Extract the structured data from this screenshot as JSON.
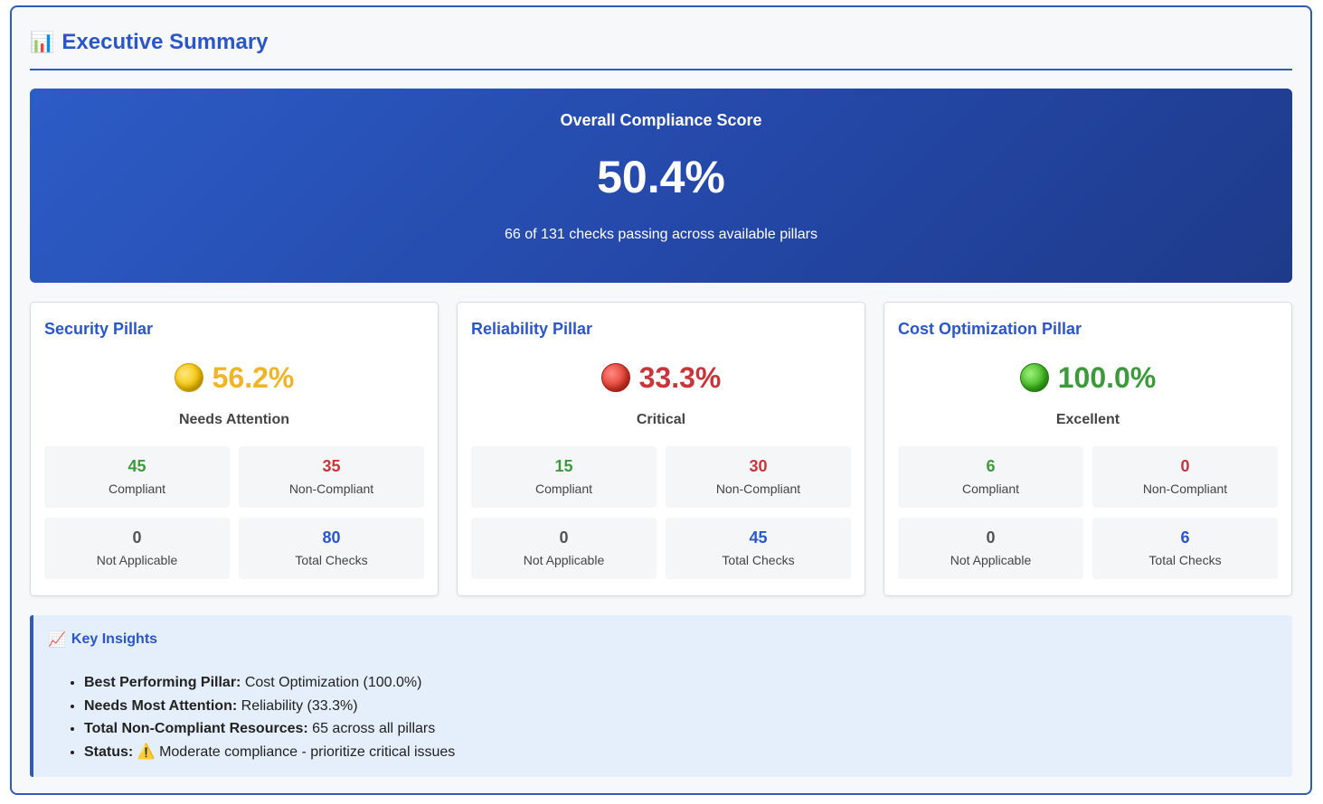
{
  "header": {
    "icon": "bar-chart-icon",
    "title": "Executive Summary"
  },
  "overall": {
    "label": "Overall Compliance Score",
    "value": "50.4%",
    "subtitle": "66 of 131 checks passing across available pillars"
  },
  "pillars": [
    {
      "title": "Security Pillar",
      "status_icon": "yellow-circle-icon",
      "percent": "56.2%",
      "status": "Needs Attention",
      "compliant": "45",
      "compliant_label": "Compliant",
      "non_compliant": "35",
      "non_compliant_label": "Non-Compliant",
      "not_applicable": "0",
      "not_applicable_label": "Not Applicable",
      "total": "80",
      "total_label": "Total Checks"
    },
    {
      "title": "Reliability Pillar",
      "status_icon": "red-circle-icon",
      "percent": "33.3%",
      "status": "Critical",
      "compliant": "15",
      "compliant_label": "Compliant",
      "non_compliant": "30",
      "non_compliant_label": "Non-Compliant",
      "not_applicable": "0",
      "not_applicable_label": "Not Applicable",
      "total": "45",
      "total_label": "Total Checks"
    },
    {
      "title": "Cost Optimization Pillar",
      "status_icon": "green-circle-icon",
      "percent": "100.0%",
      "status": "Excellent",
      "compliant": "6",
      "compliant_label": "Compliant",
      "non_compliant": "0",
      "non_compliant_label": "Non-Compliant",
      "not_applicable": "0",
      "not_applicable_label": "Not Applicable",
      "total": "6",
      "total_label": "Total Checks"
    }
  ],
  "insights": {
    "icon": "trend-chart-icon",
    "title": "Key Insights",
    "items": [
      {
        "label": "Best Performing Pillar:",
        "text": "Cost Optimization (100.0%)"
      },
      {
        "label": "Needs Most Attention:",
        "text": "Reliability (33.3%)"
      },
      {
        "label": "Total Non-Compliant Resources:",
        "text": "65 across all pillars"
      },
      {
        "label": "Status:",
        "icon": "warning-icon",
        "text": "Moderate compliance - prioritize critical issues"
      }
    ]
  },
  "colors": {
    "accent": "#2a56c6",
    "good": "#3c9a3c",
    "warn": "#f0b429",
    "bad": "#c7363a"
  }
}
